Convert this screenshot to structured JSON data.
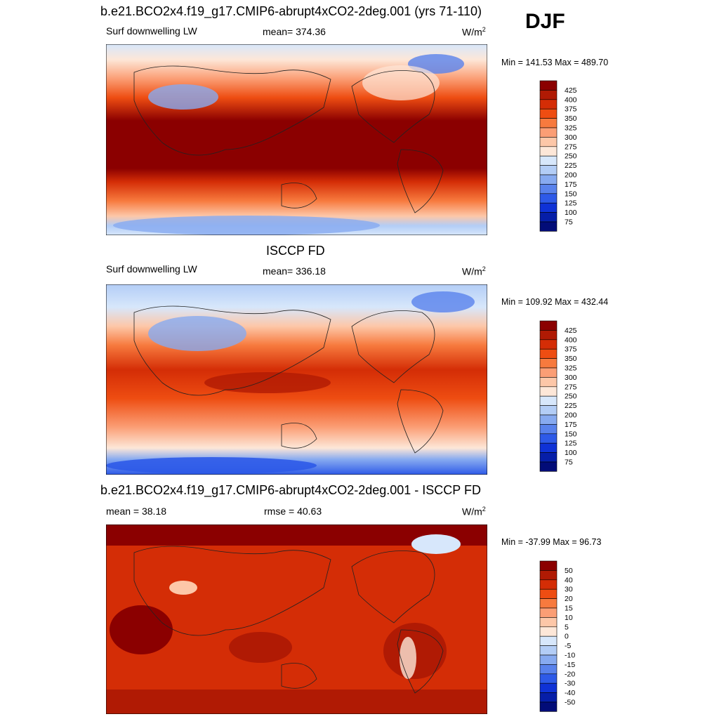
{
  "season": "DJF",
  "panels": [
    {
      "title": "b.e21.BCO2x4.f19_g17.CMIP6-abrupt4xCO2-2deg.001 (yrs 71-110)",
      "left_label": "Surf downwelling LW",
      "center_label": "mean= 374.36",
      "units": "W/m",
      "units_sup": "2",
      "minmax": "Min = 141.53 Max = 489.70",
      "colorbar_labels": [
        "425",
        "400",
        "375",
        "350",
        "325",
        "300",
        "275",
        "250",
        "225",
        "200",
        "175",
        "150",
        "125",
        "100",
        "75"
      ],
      "palette": "abs"
    },
    {
      "title": "ISCCP FD",
      "left_label": "Surf downwelling LW",
      "center_label": "mean= 336.18",
      "units": "W/m",
      "units_sup": "2",
      "minmax": "Min = 109.92 Max = 432.44",
      "colorbar_labels": [
        "425",
        "400",
        "375",
        "350",
        "325",
        "300",
        "275",
        "250",
        "225",
        "200",
        "175",
        "150",
        "125",
        "100",
        "75"
      ],
      "palette": "abs"
    },
    {
      "title": "b.e21.BCO2x4.f19_g17.CMIP6-abrupt4xCO2-2deg.001 - ISCCP FD",
      "left_label": "mean =  38.18",
      "center_label": "rmse =  40.63",
      "units": "W/m",
      "units_sup": "2",
      "minmax": "Min = -37.99 Max =  96.73",
      "colorbar_labels": [
        "50",
        "40",
        "30",
        "20",
        "15",
        "10",
        "5",
        "0",
        "-5",
        "-10",
        "-15",
        "-20",
        "-30",
        "-40",
        "-50"
      ],
      "palette": "diff"
    }
  ],
  "colors": {
    "scale": [
      "#8b0000",
      "#b01a04",
      "#d42d06",
      "#ee4d12",
      "#f77a3e",
      "#fb9e75",
      "#fdc7a8",
      "#fde7d8",
      "#d7e7fb",
      "#b3cdf6",
      "#87aaf0",
      "#5982ec",
      "#2e5ae8",
      "#0f32d6",
      "#061ea8",
      "#020c78"
    ]
  }
}
